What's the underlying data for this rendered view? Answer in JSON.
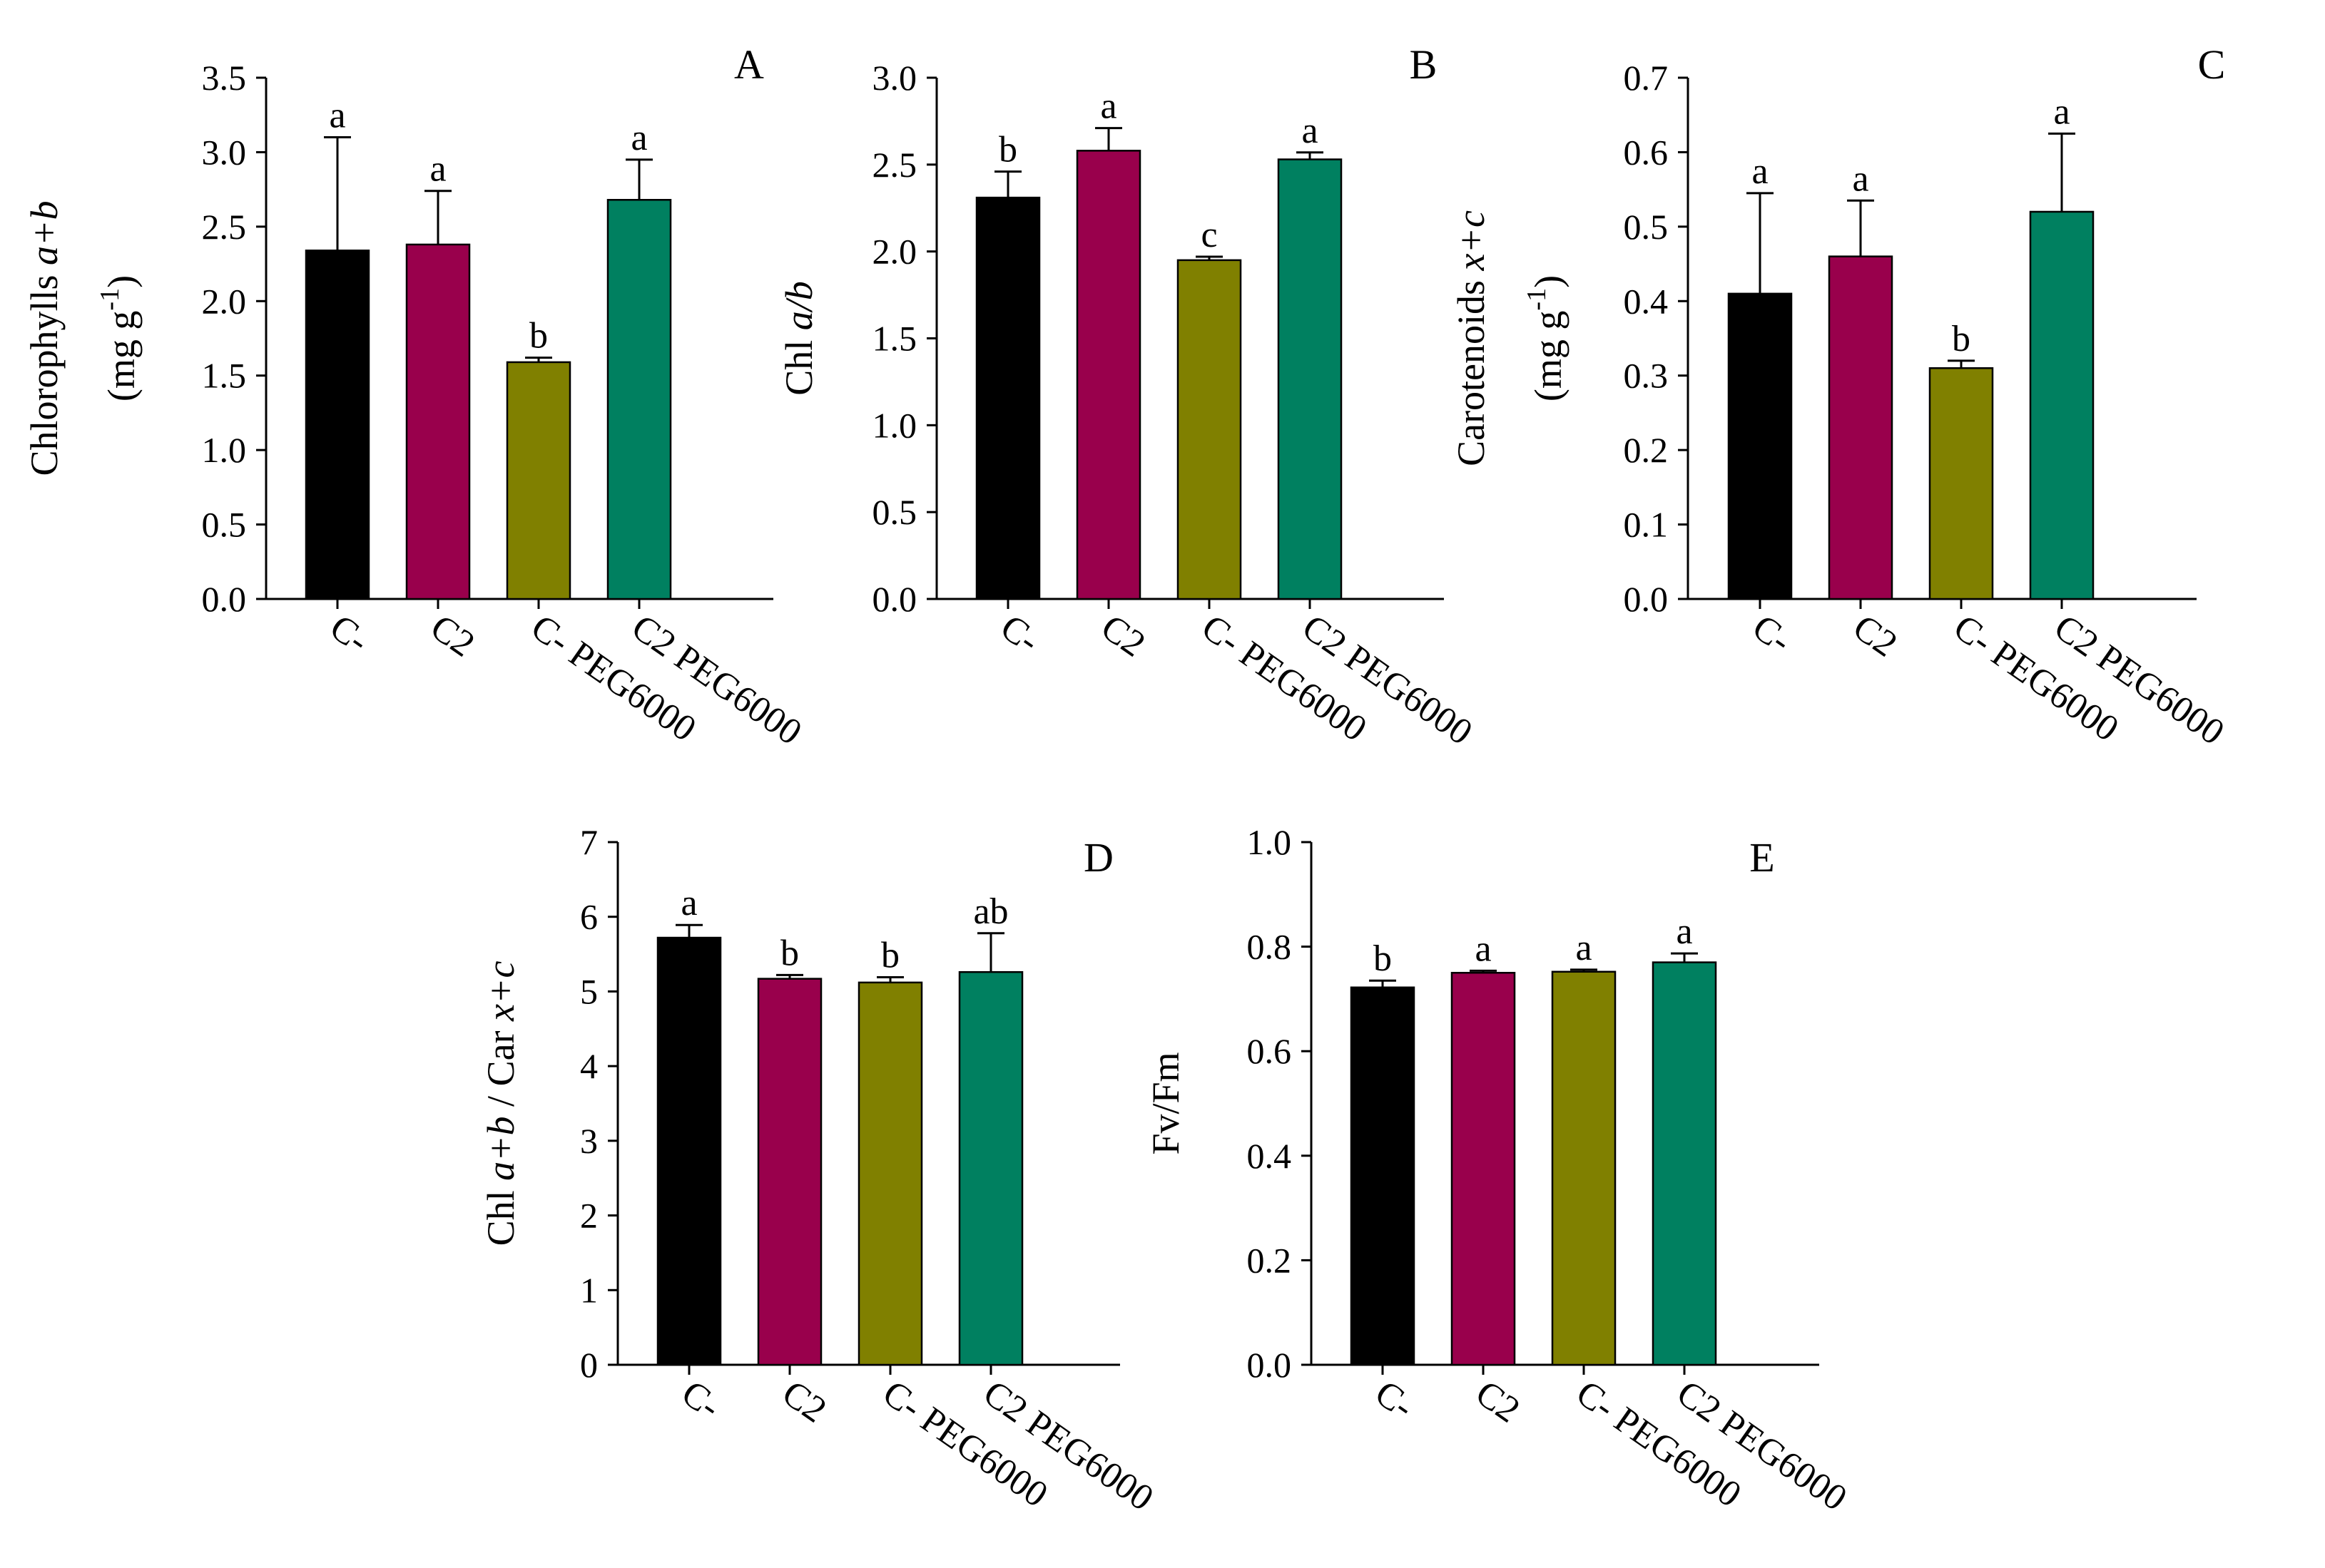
{
  "colors": {
    "C-": "#000000",
    "C2": "#99004C",
    "C- PEG6000": "#808000",
    "C2 PEG6000": "#008060"
  },
  "chart_data": [
    {
      "panel": "A",
      "type": "bar",
      "ylabel_main": "Chlorophylls ",
      "ylabel_italic": "a+b",
      "ylabel_unit": "(mg g-1)",
      "ylabel_unit_prefix": "(mg g",
      "ylabel_unit_sup": "-1",
      "ylabel_unit_suffix": ")",
      "categories": [
        "C-",
        "C2",
        "C- PEG6000",
        "C2 PEG6000"
      ],
      "values": [
        2.34,
        2.38,
        1.59,
        2.68
      ],
      "errors": [
        0.76,
        0.36,
        0.03,
        0.27
      ],
      "letters": [
        "a",
        "a",
        "b",
        "a"
      ],
      "ylim": [
        0,
        3.5
      ],
      "yticks": [
        "0.0",
        "0.5",
        "1.0",
        "1.5",
        "2.0",
        "2.5",
        "3.0",
        "3.5"
      ]
    },
    {
      "panel": "B",
      "type": "bar",
      "ylabel_main": "Chl ",
      "ylabel_italic": "a/b",
      "categories": [
        "C-",
        "C2",
        "C- PEG6000",
        "C2 PEG6000"
      ],
      "values": [
        2.31,
        2.58,
        1.95,
        2.53
      ],
      "errors": [
        0.15,
        0.13,
        0.02,
        0.04
      ],
      "letters": [
        "b",
        "a",
        "c",
        "a"
      ],
      "ylim": [
        0,
        3.0
      ],
      "yticks": [
        "0.0",
        "0.5",
        "1.0",
        "1.5",
        "2.0",
        "2.5",
        "3.0"
      ]
    },
    {
      "panel": "C",
      "type": "bar",
      "ylabel_main": "Carotenoids ",
      "ylabel_italic": "x+c",
      "ylabel_unit": "(mg g-1)",
      "ylabel_unit_prefix": "(mg g",
      "ylabel_unit_sup": "-1",
      "ylabel_unit_suffix": ")",
      "categories": [
        "C-",
        "C2",
        "C- PEG6000",
        "C2 PEG6000"
      ],
      "values": [
        0.41,
        0.46,
        0.31,
        0.52
      ],
      "errors": [
        0.135,
        0.075,
        0.01,
        0.105
      ],
      "letters": [
        "a",
        "a",
        "b",
        "a"
      ],
      "ylim": [
        0,
        0.7
      ],
      "yticks": [
        "0.0",
        "0.1",
        "0.2",
        "0.3",
        "0.4",
        "0.5",
        "0.6",
        "0.7"
      ]
    },
    {
      "panel": "D",
      "type": "bar",
      "ylabel_main": "Chl ",
      "ylabel_italic": "a+b",
      "ylabel_mid": " / Car ",
      "ylabel_italic2": "x+c",
      "categories": [
        "C-",
        "C2",
        "C- PEG6000",
        "C2 PEG6000"
      ],
      "values": [
        5.72,
        5.17,
        5.12,
        5.26
      ],
      "errors": [
        0.17,
        0.05,
        0.07,
        0.52
      ],
      "letters": [
        "a",
        "b",
        "b",
        "ab"
      ],
      "ylim": [
        0,
        7
      ],
      "yticks": [
        "0",
        "1",
        "2",
        "3",
        "4",
        "5",
        "6",
        "7"
      ]
    },
    {
      "panel": "E",
      "type": "bar",
      "ylabel_main": "Fv/Fm",
      "categories": [
        "C-",
        "C2",
        "C- PEG6000",
        "C2 PEG6000"
      ],
      "values": [
        0.722,
        0.75,
        0.752,
        0.77
      ],
      "errors": [
        0.013,
        0.004,
        0.004,
        0.017
      ],
      "letters": [
        "b",
        "a",
        "a",
        "a"
      ],
      "ylim": [
        0,
        1.0
      ],
      "yticks": [
        "0.0",
        "0.2",
        "0.4",
        "0.6",
        "0.8",
        "1.0"
      ]
    }
  ]
}
